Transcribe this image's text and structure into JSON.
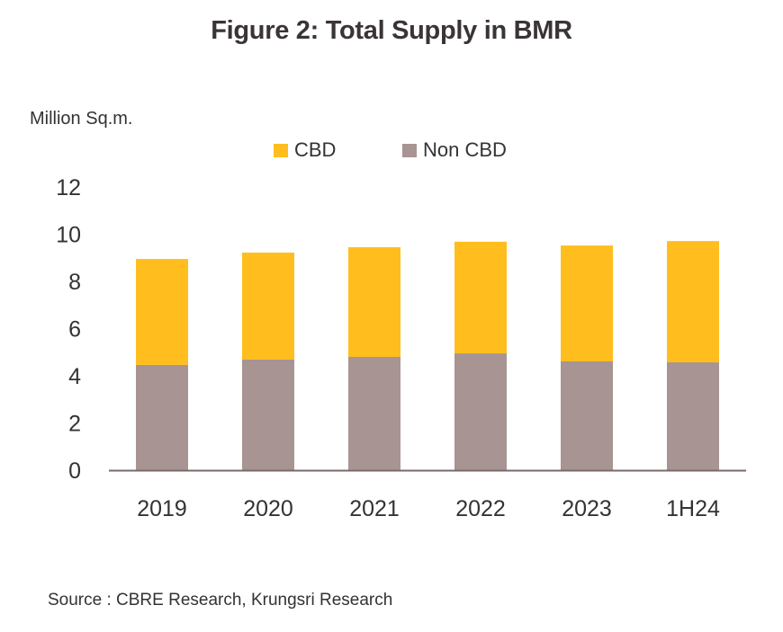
{
  "title": "Figure 2: Total Supply in BMR",
  "source": "Source : CBRE Research, Krungsri Research",
  "colors": {
    "cbd": "#FFBE1E",
    "non_cbd": "#A89492",
    "axis": "#7a6a6a",
    "text": "#333333"
  },
  "chart_data": {
    "type": "bar",
    "stacked": true,
    "title": "Figure 2: Total Supply in BMR",
    "xlabel": "",
    "ylabel": "Million Sq.m.",
    "categories": [
      "2019",
      "2020",
      "2021",
      "2022",
      "2023",
      "1H24"
    ],
    "series": [
      {
        "name": "Non CBD",
        "color": "#A89492",
        "values": [
          4.46,
          4.69,
          4.8,
          4.95,
          4.61,
          4.57
        ]
      },
      {
        "name": "CBD",
        "color": "#FFBE1E",
        "values": [
          4.49,
          4.53,
          4.65,
          4.73,
          4.91,
          5.14
        ]
      }
    ],
    "legend": {
      "entries": [
        "CBD",
        "Non CBD"
      ],
      "position": "top-center"
    },
    "ylim": [
      0,
      12
    ],
    "yticks": [
      0,
      2,
      4,
      6,
      8,
      10,
      12
    ],
    "yticklabels": [
      "0",
      "2",
      "4",
      "6",
      "8",
      "10",
      "12"
    ],
    "grid": false
  }
}
